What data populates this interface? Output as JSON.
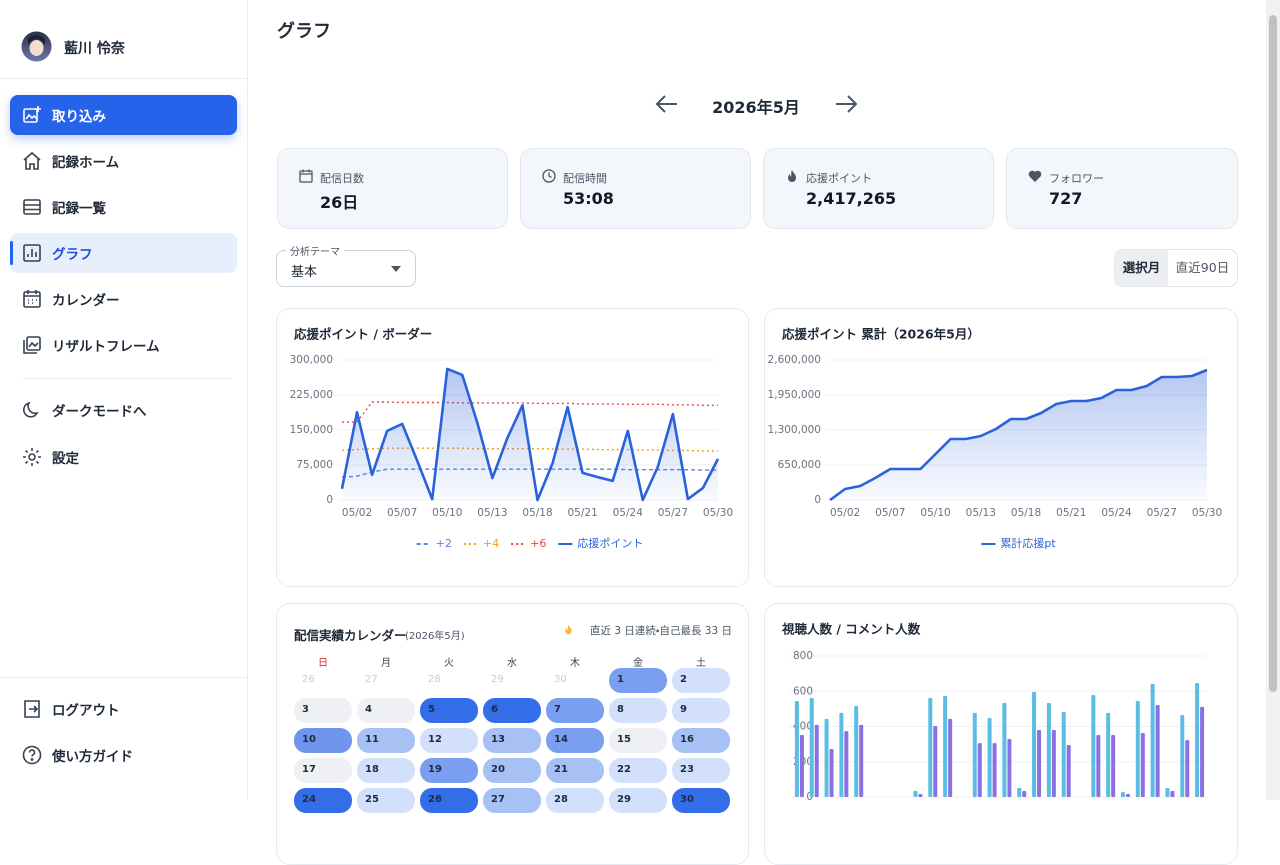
{
  "sidebar": {
    "user_name": "藍川 怜奈",
    "primary_action": "取り込み",
    "nav": [
      "記録ホーム",
      "記録一覧",
      "グラフ",
      "カレンダー",
      "リザルトフレーム"
    ],
    "extras": [
      "ダークモードへ",
      "設定"
    ],
    "footer": [
      "ログアウト",
      "使い方ガイド"
    ]
  },
  "header": {
    "title": "グラフ",
    "month": "2026年5月"
  },
  "stats": [
    {
      "label": "配信日数",
      "value": "26日"
    },
    {
      "label": "配信時間",
      "value": "53:08"
    },
    {
      "label": "応援ポイント",
      "value": "2,417,265"
    },
    {
      "label": "フォロワー",
      "value": "727"
    }
  ],
  "theme_select": {
    "label": "分析テーマ",
    "value": "基本"
  },
  "range_toggle": [
    "選択月",
    "直近90日"
  ],
  "chart_data": [
    {
      "type": "line",
      "title": "応援ポイント / ボーダー",
      "categories": [
        null,
        "05/02",
        null,
        null,
        "05/07",
        null,
        null,
        "05/10",
        null,
        null,
        "05/13",
        null,
        null,
        "05/18",
        null,
        null,
        "05/21",
        null,
        null,
        "05/24",
        null,
        null,
        "05/27",
        null,
        null,
        "05/30"
      ],
      "series": [
        {
          "name": "+2",
          "color": "#5b84e0",
          "style": "dashed",
          "values": [
            49000,
            51000,
            60000,
            66000,
            66000,
            66000,
            66000,
            66000,
            66000,
            66000,
            66000,
            66000,
            66000,
            66000,
            66000,
            66000,
            66000,
            66000,
            66000,
            65000,
            65000,
            65000,
            65000,
            65000,
            64000,
            64000
          ]
        },
        {
          "name": "+4",
          "color": "#f59e0b",
          "style": "dotted",
          "values": [
            107000,
            108000,
            110000,
            111000,
            111000,
            111000,
            111000,
            111000,
            111000,
            110000,
            110000,
            110000,
            110000,
            110000,
            109000,
            109000,
            109000,
            108000,
            108000,
            108000,
            107000,
            107000,
            106000,
            106000,
            105000,
            105000
          ]
        },
        {
          "name": "+6",
          "color": "#ef4444",
          "style": "dotted",
          "values": [
            167000,
            167000,
            210000,
            210000,
            209000,
            209000,
            209000,
            209000,
            208000,
            208000,
            208000,
            208000,
            208000,
            207000,
            207000,
            207000,
            206000,
            206000,
            206000,
            205000,
            205000,
            205000,
            204000,
            204000,
            203000,
            203000
          ]
        },
        {
          "name": "応援ポイント",
          "color": "#2a62dc",
          "style": "solid",
          "fill": true,
          "values": [
            24000,
            188000,
            54000,
            148000,
            163000,
            84000,
            2000,
            281000,
            268000,
            165000,
            47000,
            133000,
            203000,
            0,
            79000,
            199000,
            58000,
            49000,
            41000,
            148000,
            0,
            71000,
            184000,
            2000,
            26000,
            88000
          ]
        }
      ],
      "ylim": [
        0,
        300000
      ],
      "yticks": [
        0,
        {
          "value": 75000,
          "label": "75,000"
        },
        {
          "value": 150000,
          "label": "150,000"
        },
        {
          "value": 225000,
          "label": "225,000"
        },
        {
          "value": 300000,
          "label": "300,000"
        }
      ],
      "grid": true
    },
    {
      "type": "line",
      "title": "応援ポイント 累計（2026年5月）",
      "categories": [
        null,
        "05/02",
        null,
        null,
        "05/07",
        null,
        null,
        "05/10",
        null,
        null,
        "05/13",
        null,
        null,
        "05/18",
        null,
        null,
        "05/21",
        null,
        null,
        "05/24",
        null,
        null,
        "05/27",
        null,
        null,
        "05/30"
      ],
      "series": [
        {
          "name": "累計応援pt",
          "color": "#2a62dc",
          "style": "solid",
          "fill": true,
          "values": [
            0,
            204000,
            260000,
            409000,
            576000,
            576000,
            576000,
            854000,
            1133000,
            1133000,
            1189000,
            1319000,
            1504000,
            1504000,
            1616000,
            1783000,
            1839000,
            1839000,
            1894000,
            2043000,
            2043000,
            2117000,
            2284000,
            2284000,
            2303000,
            2414000
          ]
        }
      ],
      "ylim": [
        0,
        2600000
      ],
      "yticks": [
        0,
        {
          "value": 650000,
          "label": "650,000"
        },
        {
          "value": 1300000,
          "label": "1,300,000"
        },
        {
          "value": 1950000,
          "label": "1,950,000"
        },
        {
          "value": 2600000,
          "label": "2,600,000"
        }
      ],
      "grid": true
    },
    {
      "type": "bar",
      "title": "視聴人数 / コメント人数",
      "categories": [
        null,
        null,
        null,
        null,
        null,
        null,
        null,
        null,
        null,
        null,
        null,
        null,
        null,
        null,
        null,
        null,
        null,
        null,
        null,
        null,
        null,
        null,
        null,
        null,
        null,
        null,
        null,
        null
      ],
      "series": [
        {
          "color": "#5bbde3",
          "values": [
            545,
            562,
            443,
            477,
            516,
            null,
            null,
            null,
            34,
            562,
            573,
            null,
            477,
            448,
            533,
            51,
            596,
            533,
            482,
            null,
            579,
            477,
            28,
            545,
            641,
            51,
            465,
            647
          ]
        },
        {
          "color": "#8b6fe3",
          "values": [
            352,
            409,
            272,
            374,
            409,
            null,
            null,
            null,
            17,
            403,
            443,
            null,
            306,
            306,
            329,
            34,
            380,
            380,
            295,
            null,
            352,
            352,
            17,
            363,
            522,
            34,
            323,
            511
          ]
        }
      ],
      "ylim": [
        0,
        800
      ],
      "yticks": [
        0,
        200,
        400,
        600,
        800
      ],
      "grid": true
    }
  ],
  "calendar": {
    "title": "配信実績カレンダー",
    "subtitle": "(2026年5月)",
    "streak": "直近 3 日連続・自己最長 33 日",
    "weekdays": [
      "日",
      "月",
      "火",
      "水",
      "木",
      "金",
      "土"
    ],
    "weeks": [
      [
        {
          "day": 26,
          "muted": true
        },
        {
          "day": 27,
          "muted": true
        },
        {
          "day": 28,
          "muted": true
        },
        {
          "day": 29,
          "muted": true
        },
        {
          "day": 30,
          "muted": true
        },
        {
          "day": 1,
          "color": "#7b9ff0"
        },
        {
          "day": 2,
          "color": "#d3e0fb"
        }
      ],
      [
        {
          "day": 3,
          "color": "#eef0f4"
        },
        {
          "day": 4,
          "color": "#eef0f4"
        },
        {
          "day": 5,
          "color": "#346de8"
        },
        {
          "day": 6,
          "color": "#346de8"
        },
        {
          "day": 7,
          "color": "#7b9ff0"
        },
        {
          "day": 8,
          "color": "#d3e0fb"
        },
        {
          "day": 9,
          "color": "#d3e0fb"
        }
      ],
      [
        {
          "day": 10,
          "color": "#6f95ee"
        },
        {
          "day": 11,
          "color": "#a8c1f5"
        },
        {
          "day": 12,
          "color": "#d3e0fb"
        },
        {
          "day": 13,
          "color": "#a8c1f5"
        },
        {
          "day": 14,
          "color": "#7b9ff0"
        },
        {
          "day": 15,
          "color": "#eef0f4"
        },
        {
          "day": 16,
          "color": "#a8c1f5"
        }
      ],
      [
        {
          "day": 17,
          "color": "#eef0f4"
        },
        {
          "day": 18,
          "color": "#d3e0fb"
        },
        {
          "day": 19,
          "color": "#7b9ff0"
        },
        {
          "day": 20,
          "color": "#a8c1f5"
        },
        {
          "day": 21,
          "color": "#a8c1f5"
        },
        {
          "day": 22,
          "color": "#d3e0fb"
        },
        {
          "day": 23,
          "color": "#d3e0fb"
        }
      ],
      [
        {
          "day": 24,
          "color": "#346de8"
        },
        {
          "day": 25,
          "color": "#d3e0fb"
        },
        {
          "day": 26,
          "color": "#346de8"
        },
        {
          "day": 27,
          "color": "#a8c1f5"
        },
        {
          "day": 28,
          "color": "#d3e0fb"
        },
        {
          "day": 29,
          "color": "#d3e0fb"
        },
        {
          "day": 30,
          "color": "#346de8"
        }
      ]
    ]
  }
}
